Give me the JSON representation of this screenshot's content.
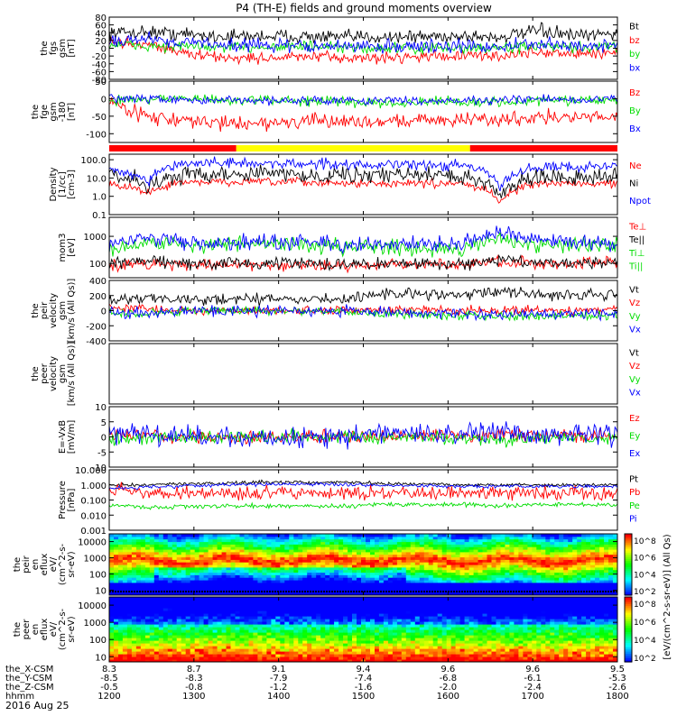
{
  "title": "P4 (TH-E) fields and ground moments overview",
  "date_label": "2016 Aug 25",
  "colors": {
    "black": "#000000",
    "red": "#ff0000",
    "green": "#00dd00",
    "blue": "#0000ff",
    "yellow": "#ffff00",
    "white": "#ffffff"
  },
  "chart_data": [
    {
      "type": "line",
      "name": "fgs",
      "ylabel": [
        "the",
        "fgs",
        "gsm",
        "[nT]"
      ],
      "ylim": [
        -80,
        80
      ],
      "yticks": [
        "80",
        "60",
        "40",
        "20",
        "0",
        "-20",
        "-40",
        "-60",
        "-80"
      ],
      "ytick_values": [
        80,
        60,
        40,
        20,
        0,
        -20,
        -40,
        -60,
        -80
      ],
      "legend": [
        "Bt",
        "bz",
        "by",
        "bx"
      ],
      "legend_colors": [
        "#000000",
        "#ff0000",
        "#00dd00",
        "#0000ff"
      ],
      "series": [
        {
          "name": "Bt",
          "color": "#000000",
          "base": [
            40,
            42,
            36,
            30,
            32,
            30,
            28,
            30,
            30,
            32,
            28,
            45,
            30,
            40
          ],
          "noise": 12
        },
        {
          "name": "bz",
          "color": "#ff0000",
          "base": [
            15,
            12,
            -15,
            -25,
            -25,
            -22,
            -25,
            -25,
            -20,
            -20,
            -20,
            -10,
            -15,
            -10
          ],
          "noise": 10
        },
        {
          "name": "by",
          "color": "#00dd00",
          "base": [
            10,
            5,
            5,
            0,
            5,
            5,
            0,
            0,
            0,
            0,
            0,
            5,
            0,
            5
          ],
          "noise": 10
        },
        {
          "name": "bx",
          "color": "#0000ff",
          "base": [
            20,
            25,
            15,
            10,
            8,
            5,
            5,
            5,
            5,
            5,
            5,
            10,
            5,
            10
          ],
          "noise": 12
        }
      ]
    },
    {
      "type": "line",
      "name": "fge",
      "ylabel": [
        "the",
        "fge",
        "gsm",
        "-180",
        "[nT]"
      ],
      "ylim": [
        -125,
        50
      ],
      "yticks": [
        "50",
        "0",
        "-50",
        "-100"
      ],
      "ytick_values": [
        50,
        0,
        -50,
        -100
      ],
      "legend": [
        "Bz",
        "By",
        "Bx"
      ],
      "legend_colors": [
        "#ff0000",
        "#00dd00",
        "#0000ff"
      ],
      "series": [
        {
          "name": "Bz",
          "color": "#ff0000",
          "base": [
            -10,
            -50,
            -65,
            -70,
            -70,
            -65,
            -65,
            -65,
            -60,
            -60,
            -60,
            -50,
            -55,
            -50
          ],
          "noise": 14
        },
        {
          "name": "By",
          "color": "#00dd00",
          "base": [
            -5,
            0,
            0,
            -5,
            -5,
            -5,
            -10,
            -10,
            -10,
            -10,
            -10,
            -5,
            -5,
            -5
          ],
          "noise": 10
        },
        {
          "name": "Bx",
          "color": "#0000ff",
          "base": [
            0,
            0,
            -5,
            -5,
            -5,
            -5,
            -5,
            -5,
            -5,
            -5,
            -5,
            0,
            -5,
            0
          ],
          "noise": 8
        }
      ]
    },
    {
      "type": "line",
      "name": "density",
      "log": true,
      "ylabel": [
        "Density",
        "[1/cc]",
        "[cm-3]"
      ],
      "ylim": [
        0.1,
        200
      ],
      "yticks": [
        "100.0",
        "10.0",
        "1.0",
        "0.1"
      ],
      "ytick_values": [
        100,
        10,
        1,
        0.1
      ],
      "legend": [
        "Ne",
        "Ni",
        "Npot"
      ],
      "legend_colors": [
        "#ff0000",
        "#000000",
        "#0000ff"
      ],
      "series": [
        {
          "name": "Ne",
          "color": "#ff0000",
          "base": [
            5,
            1.5,
            6,
            6,
            6,
            6,
            5,
            5,
            5,
            5,
            0.5,
            5,
            5,
            5
          ],
          "noise": 0.15
        },
        {
          "name": "Ni",
          "color": "#000000",
          "base": [
            15,
            4,
            15,
            18,
            18,
            15,
            15,
            15,
            15,
            12,
            1,
            12,
            12,
            12
          ],
          "noise": 0.3
        },
        {
          "name": "Npot",
          "color": "#0000ff",
          "base": [
            30,
            5,
            60,
            70,
            60,
            60,
            60,
            50,
            50,
            50,
            2,
            40,
            40,
            50
          ],
          "noise": 0.2
        }
      ]
    },
    {
      "type": "line",
      "name": "temperature",
      "log": true,
      "ylabel": [
        "mom3",
        "[eV]"
      ],
      "ylim": [
        30,
        5000
      ],
      "yticks": [
        "1000",
        "100"
      ],
      "ytick_values": [
        1000,
        100
      ],
      "legend": [
        "Te⊥",
        "Te||",
        "Ti⊥",
        "Ti||"
      ],
      "legend_colors": [
        "#ff0000",
        "#000000",
        "#00dd00",
        "#00dd00"
      ],
      "series": [
        {
          "name": "Te⊥",
          "color": "#ff0000",
          "base": [
            80,
            100,
            90,
            90,
            90,
            90,
            80,
            90,
            90,
            90,
            120,
            100,
            100,
            100
          ],
          "noise": 0.15
        },
        {
          "name": "Te||",
          "color": "#000000",
          "base": [
            100,
            120,
            100,
            100,
            100,
            100,
            90,
            100,
            100,
            100,
            130,
            110,
            110,
            110
          ],
          "noise": 0.15
        },
        {
          "name": "Ti||",
          "color": "#00dd00",
          "base": [
            300,
            600,
            500,
            500,
            500,
            500,
            400,
            400,
            400,
            350,
            800,
            500,
            450,
            450
          ],
          "noise": 0.2
        },
        {
          "name": "Ti⊥",
          "color": "#0000ff",
          "base": [
            500,
            900,
            600,
            600,
            600,
            600,
            500,
            500,
            500,
            500,
            1200,
            700,
            600,
            600
          ],
          "noise": 0.2
        }
      ]
    },
    {
      "type": "line",
      "name": "peir_velocity",
      "ylabel": [
        "the",
        "peir",
        "velocity",
        "gsm",
        "[km/s (All Qs)]"
      ],
      "ylim": [
        -400,
        400
      ],
      "yticks": [
        "400",
        "200",
        "0",
        "-200",
        "-400"
      ],
      "ytick_values": [
        400,
        200,
        0,
        -200,
        -400
      ],
      "legend": [
        "Vt",
        "Vz",
        "Vy",
        "Vx"
      ],
      "legend_colors": [
        "#000000",
        "#ff0000",
        "#00dd00",
        "#0000ff"
      ],
      "gap": [
        8.56,
        9.41
      ],
      "series": [
        {
          "name": "Vt",
          "color": "#000000",
          "base": [
            120,
            180,
            150,
            150,
            150,
            150,
            150,
            220,
            230,
            220,
            250,
            220,
            200,
            220
          ],
          "noise": 50
        },
        {
          "name": "Vz",
          "color": "#ff0000",
          "base": [
            50,
            20,
            0,
            0,
            0,
            0,
            0,
            20,
            10,
            0,
            10,
            0,
            0,
            0
          ],
          "noise": 40
        },
        {
          "name": "Vy",
          "color": "#00dd00",
          "base": [
            -30,
            -50,
            0,
            0,
            0,
            0,
            0,
            -40,
            -50,
            -60,
            -80,
            -70,
            -60,
            -60
          ],
          "noise": 40
        },
        {
          "name": "Vx",
          "color": "#0000ff",
          "base": [
            -20,
            -40,
            0,
            0,
            0,
            0,
            0,
            -20,
            -30,
            -40,
            -60,
            -50,
            -40,
            -50
          ],
          "noise": 50
        }
      ]
    },
    {
      "type": "line",
      "name": "peer_velocity",
      "ylabel": [
        "the",
        "peer",
        "velocity",
        "gsm",
        "[km/s (All Qs)]"
      ],
      "legend": [
        "Vt",
        "Vz",
        "Vy",
        "Vx"
      ],
      "legend_colors": [
        "#000000",
        "#ff0000",
        "#00dd00",
        "#0000ff"
      ],
      "series": []
    },
    {
      "type": "line",
      "name": "efield",
      "ylabel": [
        "E=-VxB",
        "[mV/m]"
      ],
      "ylim": [
        -10,
        10
      ],
      "yticks": [
        "10",
        "5",
        "0",
        "-5",
        "-10"
      ],
      "ytick_values": [
        10,
        5,
        0,
        -5,
        -10
      ],
      "legend": [
        "Ez",
        "Ey",
        "Ex"
      ],
      "legend_colors": [
        "#ff0000",
        "#00dd00",
        "#0000ff"
      ],
      "gap": [
        8.56,
        9.41
      ],
      "series": [
        {
          "name": "Ez",
          "color": "#ff0000",
          "base": [
            0.5,
            0.5,
            0,
            0,
            0,
            0,
            0,
            0.5,
            0.5,
            0.5,
            1,
            0.5,
            0.5,
            0.5
          ],
          "noise": 1.5
        },
        {
          "name": "Ey",
          "color": "#00dd00",
          "base": [
            -0.5,
            -0.5,
            0,
            0,
            0,
            0,
            0,
            -0.5,
            -0.5,
            -0.5,
            -1,
            -0.5,
            -0.5,
            -0.5
          ],
          "noise": 1.5
        },
        {
          "name": "Ex",
          "color": "#0000ff",
          "base": [
            1,
            1.5,
            0,
            0,
            0,
            0,
            0,
            1,
            1,
            1,
            1.5,
            1,
            1,
            1
          ],
          "noise": 2.5
        }
      ]
    },
    {
      "type": "line",
      "name": "pressure",
      "log": true,
      "ylabel": [
        "Pressure",
        "[nPa]"
      ],
      "ylim": [
        0.001,
        10
      ],
      "yticks": [
        "10.000",
        "1.000",
        "0.100",
        "0.010",
        "0.001"
      ],
      "ytick_values": [
        10,
        1,
        0.1,
        0.01,
        0.001
      ],
      "legend": [
        "Pt",
        "Pb",
        "Pe",
        "Pi"
      ],
      "legend_colors": [
        "#000000",
        "#ff0000",
        "#00dd00",
        "#0000ff"
      ],
      "series": [
        {
          "name": "Pt",
          "color": "#000000",
          "base": [
            1,
            1,
            1.2,
            1.3,
            1.5,
            1.5,
            1.5,
            1.2,
            1.2,
            1,
            1,
            1,
            1,
            1
          ],
          "noise": 0.08
        },
        {
          "name": "Pb",
          "color": "#ff0000",
          "base": [
            0.5,
            0.3,
            0.3,
            0.3,
            0.3,
            0.3,
            0.3,
            0.3,
            0.3,
            0.3,
            0.3,
            0.3,
            0.3,
            0.3
          ],
          "noise": 0.3
        },
        {
          "name": "Pe",
          "color": "#00dd00",
          "base": [
            0.05,
            0.03,
            0.04,
            0.04,
            0.04,
            0.04,
            0.04,
            0.05,
            0.05,
            0.05,
            0.04,
            0.05,
            0.05,
            0.05
          ],
          "noise": 0.1
        },
        {
          "name": "Pi",
          "color": "#0000ff",
          "base": [
            0.6,
            0.7,
            0.9,
            1,
            1.1,
            1.1,
            1.1,
            0.9,
            0.9,
            0.8,
            0.8,
            0.8,
            0.8,
            0.8
          ],
          "noise": 0.08
        }
      ]
    },
    {
      "type": "heatmap",
      "name": "peir_eflux",
      "log": true,
      "ylabel": [
        "the",
        "peir",
        "en",
        "eflux",
        "eV/",
        "(cm^2-s-",
        "sr-eV)"
      ],
      "ylim": [
        5,
        30000
      ],
      "yticks": [
        "10000",
        "1000",
        "100",
        "10"
      ],
      "ytick_values": [
        10000,
        1000,
        100,
        10
      ],
      "colorbar_ticks": [
        "10^8",
        "10^6",
        "10^4",
        "10^2"
      ]
    },
    {
      "type": "heatmap",
      "name": "peer_eflux",
      "log": true,
      "ylabel": [
        "the",
        "peer",
        "en",
        "eflux",
        "eV/",
        "(cm^2-s-",
        "sr-eV)"
      ],
      "ylim": [
        5,
        30000
      ],
      "yticks": [
        "10000",
        "1000",
        "100",
        "10"
      ],
      "ytick_values": [
        10000,
        1000,
        100,
        10
      ],
      "colorbar_ticks": [
        "10^8",
        "10^6",
        "10^4",
        "10^2"
      ]
    }
  ],
  "colorbar_label": "[eV/(cm^2-s-sr-eV)] (All Qs)",
  "mode_bar": {
    "segments": [
      {
        "start": 8.0,
        "end": 8.5,
        "color": "#ff0000"
      },
      {
        "start": 8.5,
        "end": 9.42,
        "color": "#ffff00"
      },
      {
        "start": 9.42,
        "end": 10.0,
        "color": "#ff0000"
      }
    ]
  },
  "x_axis": {
    "time_range": [
      12.0,
      18.0
    ],
    "row_labels": [
      "the_X-CSM",
      "the_Y-CSM",
      "the_Z-CSM",
      "hhmm"
    ],
    "columns": [
      {
        "t": 12.0,
        "values": [
          "8.3",
          "-8.5",
          "-0.5",
          "1200"
        ]
      },
      {
        "t": 13.0,
        "values": [
          "8.7",
          "-8.3",
          "-0.8",
          "1300"
        ]
      },
      {
        "t": 14.0,
        "values": [
          "9.1",
          "-7.9",
          "-1.2",
          "1400"
        ]
      },
      {
        "t": 15.0,
        "values": [
          "9.4",
          "-7.4",
          "-1.6",
          "1500"
        ]
      },
      {
        "t": 16.0,
        "values": [
          "9.6",
          "-6.8",
          "-2.0",
          "1600"
        ]
      },
      {
        "t": 17.0,
        "values": [
          "9.6",
          "-6.1",
          "-2.4",
          "1700"
        ]
      },
      {
        "t": 18.0,
        "values": [
          "9.5",
          "-5.3",
          "-2.6",
          "1800"
        ]
      }
    ]
  }
}
